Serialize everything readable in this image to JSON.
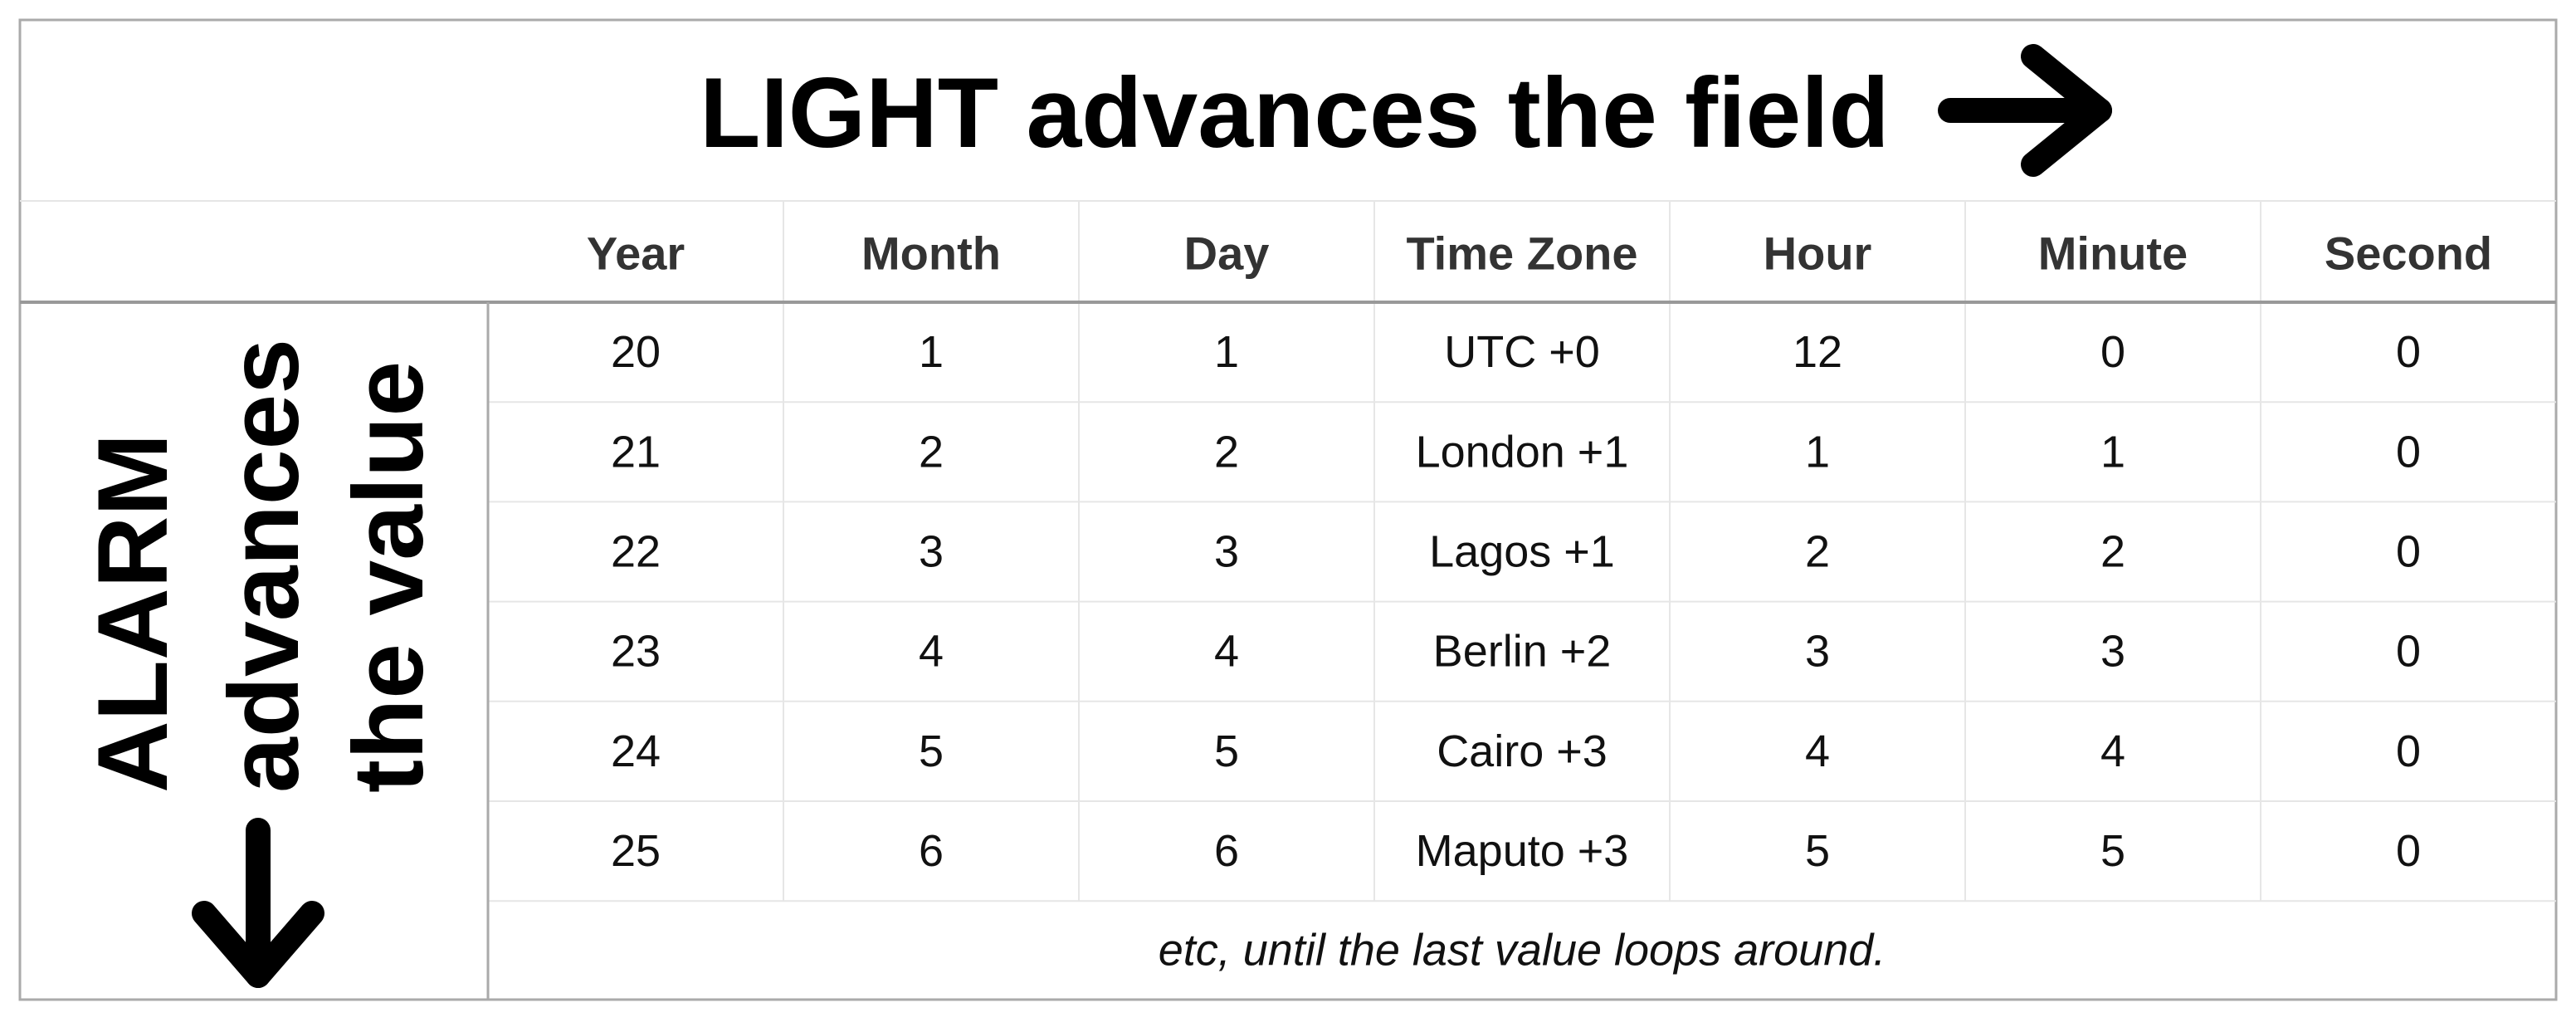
{
  "title": "LIGHT advances the field",
  "side_label": [
    "ALARM",
    "advances",
    "the value"
  ],
  "table": {
    "columns": [
      "Year",
      "Month",
      "Day",
      "Time Zone",
      "Hour",
      "Minute",
      "Second"
    ],
    "rows": [
      [
        20,
        1,
        1,
        "UTC +0",
        12,
        0,
        0
      ],
      [
        21,
        2,
        2,
        "London +1",
        1,
        1,
        0
      ],
      [
        22,
        3,
        3,
        "Lagos +1",
        2,
        2,
        0
      ],
      [
        23,
        4,
        4,
        "Berlin +2",
        3,
        3,
        0
      ],
      [
        24,
        5,
        5,
        "Cairo +3",
        4,
        4,
        0
      ],
      [
        25,
        6,
        6,
        "Maputo +3",
        5,
        5,
        0
      ]
    ],
    "footer": "etc, until the last value loops around."
  }
}
